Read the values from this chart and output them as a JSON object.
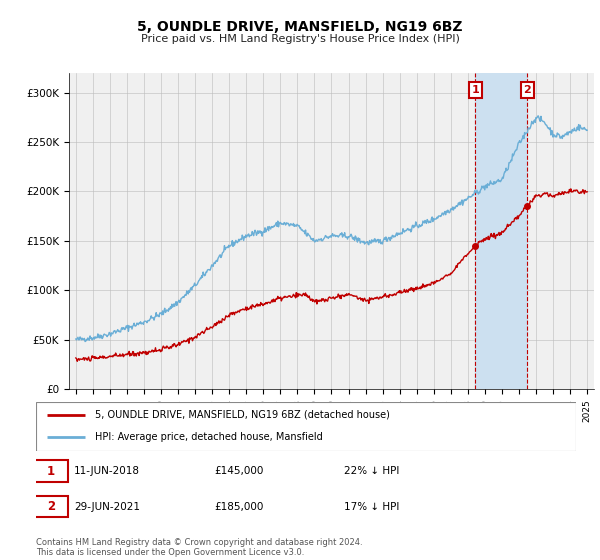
{
  "title": "5, OUNDLE DRIVE, MANSFIELD, NG19 6BZ",
  "subtitle": "Price paid vs. HM Land Registry's House Price Index (HPI)",
  "legend_line1": "5, OUNDLE DRIVE, MANSFIELD, NG19 6BZ (detached house)",
  "legend_line2": "HPI: Average price, detached house, Mansfield",
  "annotation1_date": "11-JUN-2018",
  "annotation1_price": "£145,000",
  "annotation1_hpi": "22% ↓ HPI",
  "annotation2_date": "29-JUN-2021",
  "annotation2_price": "£185,000",
  "annotation2_hpi": "17% ↓ HPI",
  "footer": "Contains HM Land Registry data © Crown copyright and database right 2024.\nThis data is licensed under the Open Government Licence v3.0.",
  "hpi_color": "#6aaed6",
  "price_color": "#c00000",
  "annotation_box_color": "#c00000",
  "background_color": "#ffffff",
  "plot_bg_color": "#f0f0f0",
  "ylim": [
    0,
    320000
  ],
  "yticks": [
    0,
    50000,
    100000,
    150000,
    200000,
    250000,
    300000
  ],
  "ytick_labels": [
    "£0",
    "£50K",
    "£100K",
    "£150K",
    "£200K",
    "£250K",
    "£300K"
  ],
  "sale1_x": 2018.44,
  "sale1_y": 145000,
  "sale2_x": 2021.49,
  "sale2_y": 185000,
  "shade_color": "#cce0f0",
  "xmin": 1994.6,
  "xmax": 2025.4
}
